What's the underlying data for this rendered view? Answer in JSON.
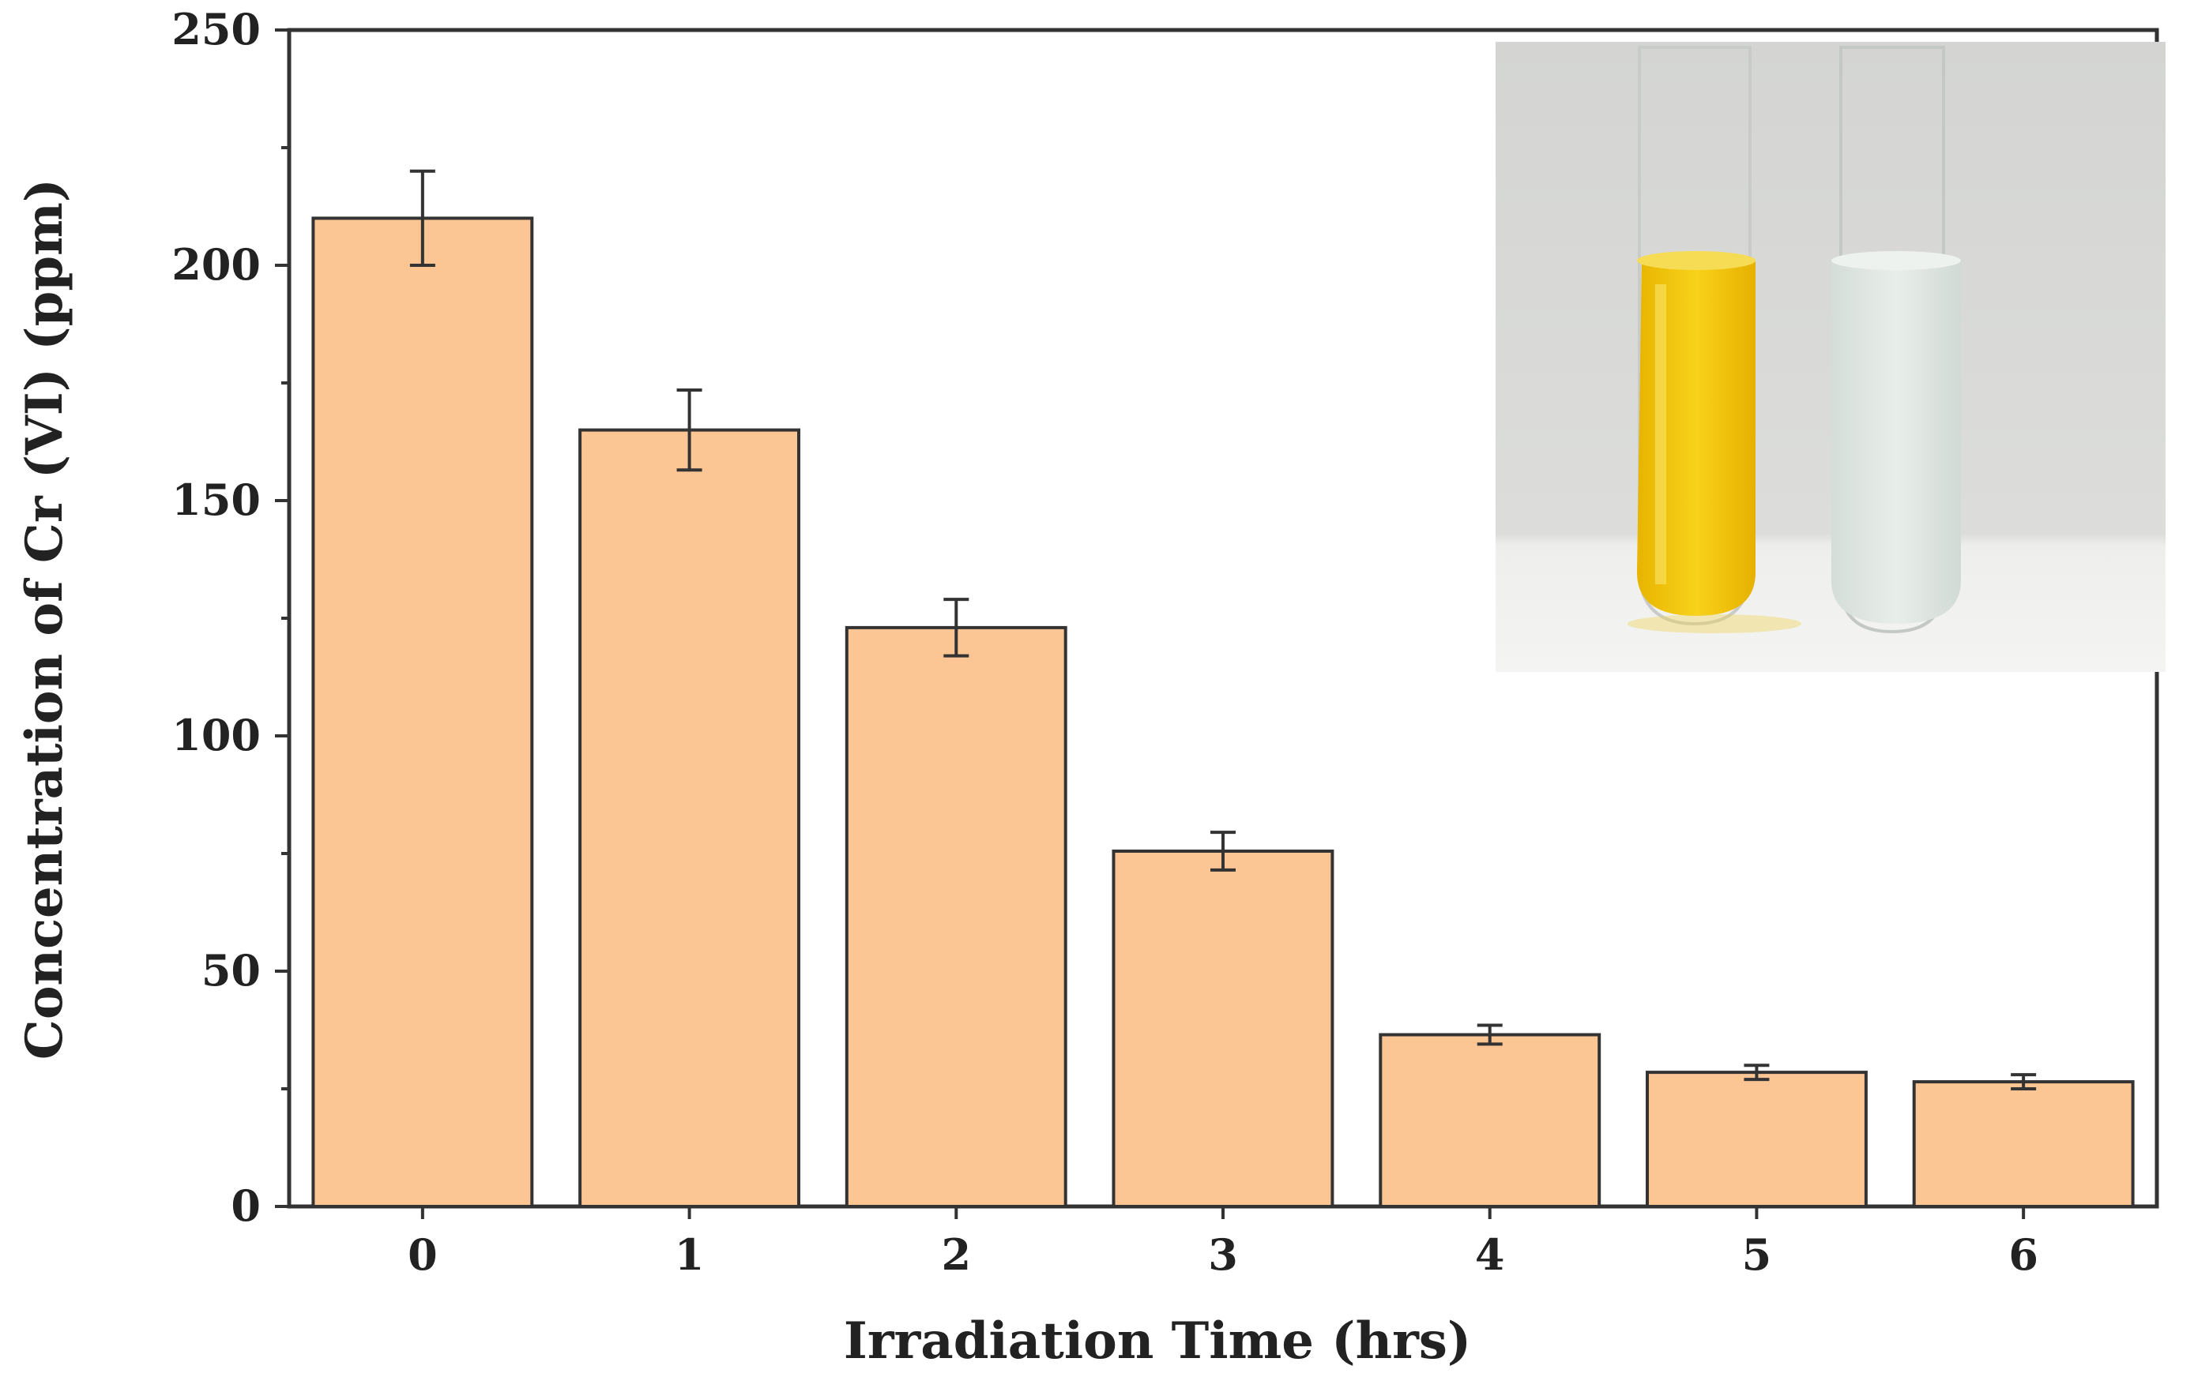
{
  "chart_data": {
    "type": "bar",
    "categories": [
      "0",
      "1",
      "2",
      "3",
      "4",
      "5",
      "6"
    ],
    "values": [
      210,
      165,
      123,
      75.5,
      36.5,
      28.5,
      26.5
    ],
    "errors": [
      10,
      8.5,
      6,
      4,
      2,
      1.5,
      1.5
    ],
    "xlabel": "Irradiation Time (hrs)",
    "ylabel": "Concentration of Cr (VI) (ppm)",
    "ylim": [
      0,
      250
    ],
    "yticks": [
      "0",
      "50",
      "100",
      "150",
      "200",
      "250"
    ],
    "grid": false,
    "colors": {
      "bar_fill": "#fcc594",
      "bar_stroke": "#333333"
    },
    "inset": {
      "description_icon": "test-tubes-photo",
      "tube_colors": [
        "#f2c200",
        "#dfe5e1"
      ]
    }
  }
}
